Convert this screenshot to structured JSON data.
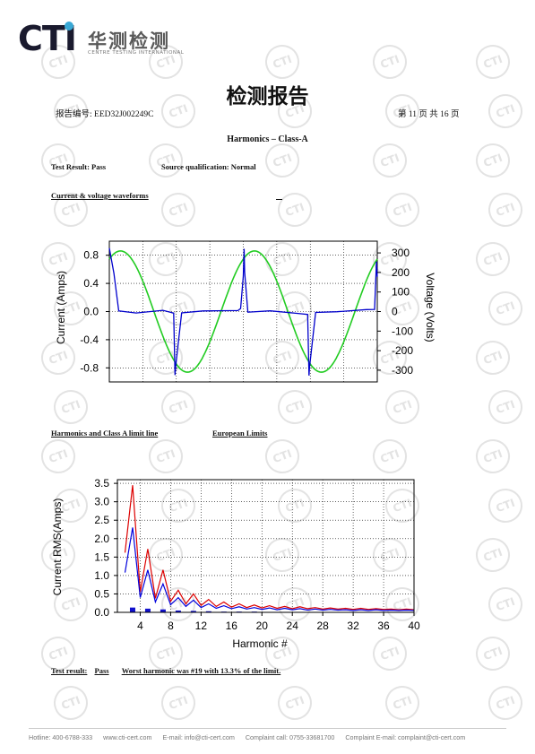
{
  "logo": {
    "brand": "CTI",
    "cn_name": "华测检测",
    "en_name": "CENTRE TESTING INTERNATIONAL"
  },
  "watermark_text": "CTI",
  "doc_title": "检测报告",
  "report_no": "报告编号: EED32J002249C",
  "page_info": "第 11 页 共 16 页",
  "section_title": "Harmonics – Class-A",
  "test_result_line": {
    "result": "Test Result: Pass",
    "source": "Source qualification: Normal"
  },
  "waveform_heading": "Current & voltage waveforms",
  "harmonics_heading": "Harmonics and Class A limit line",
  "limits_heading": "European Limits",
  "final_result": {
    "label": "Test result:",
    "value": "Pass",
    "detail": "Worst harmonic was #19 with 13.3% of the limit."
  },
  "footer": {
    "hotline": "Hotline: 400-6788-333",
    "web": "www.cti-cert.com",
    "email": "E-mail: info@cti-cert.com",
    "complaint_call": "Complaint call: 0755-33681700",
    "complaint_email": "Complaint E-mail: complaint@cti-cert.com"
  },
  "chart_data": [
    {
      "type": "line",
      "left_ylabel": "Current (Amps)",
      "right_ylabel": "Voltage (Volts)",
      "left_ylim": [
        -1.0,
        1.0
      ],
      "right_ylim": [
        -360,
        360
      ],
      "left_ticks": [
        "0.8",
        "0.4",
        "0.0",
        "-0.4",
        "-0.8"
      ],
      "left_tick_values": [
        0.8,
        0.4,
        0.0,
        -0.4,
        -0.8
      ],
      "right_ticks": [
        "300",
        "200",
        "100",
        "0",
        "-100",
        "-200",
        "-300"
      ],
      "right_tick_values": [
        300,
        200,
        100,
        0,
        -100,
        -200,
        -300
      ],
      "grid": true,
      "series": [
        {
          "axis": "right",
          "color": "#22cc22",
          "kind": "sine",
          "amplitude": 310,
          "cycles": 2,
          "phase_deg": 60
        },
        {
          "axis": "left",
          "color": "#0000cc",
          "x": [
            0.0,
            0.017,
            0.035,
            0.1,
            0.2,
            0.24,
            0.245,
            0.247,
            0.27,
            0.35,
            0.48,
            0.49,
            0.5,
            0.503,
            0.505,
            0.517,
            0.535,
            0.6,
            0.7,
            0.74,
            0.745,
            0.747,
            0.77,
            0.85,
            0.96,
            0.99,
            0.997,
            1.0
          ],
          "y": [
            0.9,
            0.55,
            0.0,
            -0.01,
            0.01,
            -0.02,
            -0.9,
            -0.8,
            -0.01,
            0.0,
            0.02,
            0.04,
            0.5,
            0.9,
            0.55,
            0.0,
            -0.01,
            0.01,
            -0.02,
            -0.05,
            -0.9,
            -0.8,
            -0.01,
            0.0,
            0.02,
            0.04,
            0.7,
            0.5
          ]
        }
      ]
    },
    {
      "type": "line",
      "xlabel": "Harmonic #",
      "ylabel": "Current RMS(Amps)",
      "xlim": [
        1,
        40
      ],
      "ylim": [
        0,
        3.6
      ],
      "x_ticks": [
        4,
        8,
        12,
        16,
        20,
        24,
        28,
        32,
        36,
        40
      ],
      "y_ticks": [
        0.0,
        0.5,
        1.0,
        1.5,
        2.0,
        2.5,
        3.0,
        3.5
      ],
      "y_tick_labels": [
        "0.0",
        "0.5",
        "1.0",
        "1.5",
        "2.0",
        "2.5",
        "3.0",
        "3.5"
      ],
      "grid": true,
      "harmonics": [
        2,
        3,
        4,
        5,
        6,
        7,
        8,
        9,
        10,
        11,
        12,
        13,
        14,
        15,
        16,
        17,
        18,
        19,
        20,
        21,
        22,
        23,
        24,
        25,
        26,
        27,
        28,
        29,
        30,
        31,
        32,
        33,
        34,
        35,
        36,
        37,
        38,
        39,
        40
      ],
      "series": [
        {
          "color": "#dd0000",
          "values": [
            1.62,
            3.45,
            0.55,
            1.72,
            0.38,
            1.15,
            0.3,
            0.6,
            0.23,
            0.5,
            0.19,
            0.35,
            0.16,
            0.28,
            0.14,
            0.23,
            0.13,
            0.2,
            0.12,
            0.18,
            0.11,
            0.16,
            0.1,
            0.15,
            0.1,
            0.13,
            0.09,
            0.12,
            0.09,
            0.11,
            0.08,
            0.11,
            0.08,
            0.1,
            0.08,
            0.09,
            0.07,
            0.09,
            0.07
          ]
        },
        {
          "color": "#0000dd",
          "values": [
            1.08,
            2.3,
            0.4,
            1.15,
            0.28,
            0.77,
            0.21,
            0.4,
            0.16,
            0.33,
            0.13,
            0.23,
            0.11,
            0.18,
            0.1,
            0.15,
            0.09,
            0.13,
            0.08,
            0.12,
            0.07,
            0.11,
            0.07,
            0.1,
            0.06,
            0.09,
            0.06,
            0.08,
            0.06,
            0.07,
            0.05,
            0.07,
            0.05,
            0.07,
            0.05,
            0.06,
            0.05,
            0.06,
            0.05
          ]
        }
      ],
      "bars": {
        "color": "#1111cc",
        "harmonics": [
          3,
          5,
          7,
          9,
          11,
          13,
          15,
          17,
          19
        ],
        "values": [
          0.13,
          0.1,
          0.08,
          0.05,
          0.04,
          0.03,
          0.02,
          0.02,
          0.02
        ]
      }
    }
  ]
}
